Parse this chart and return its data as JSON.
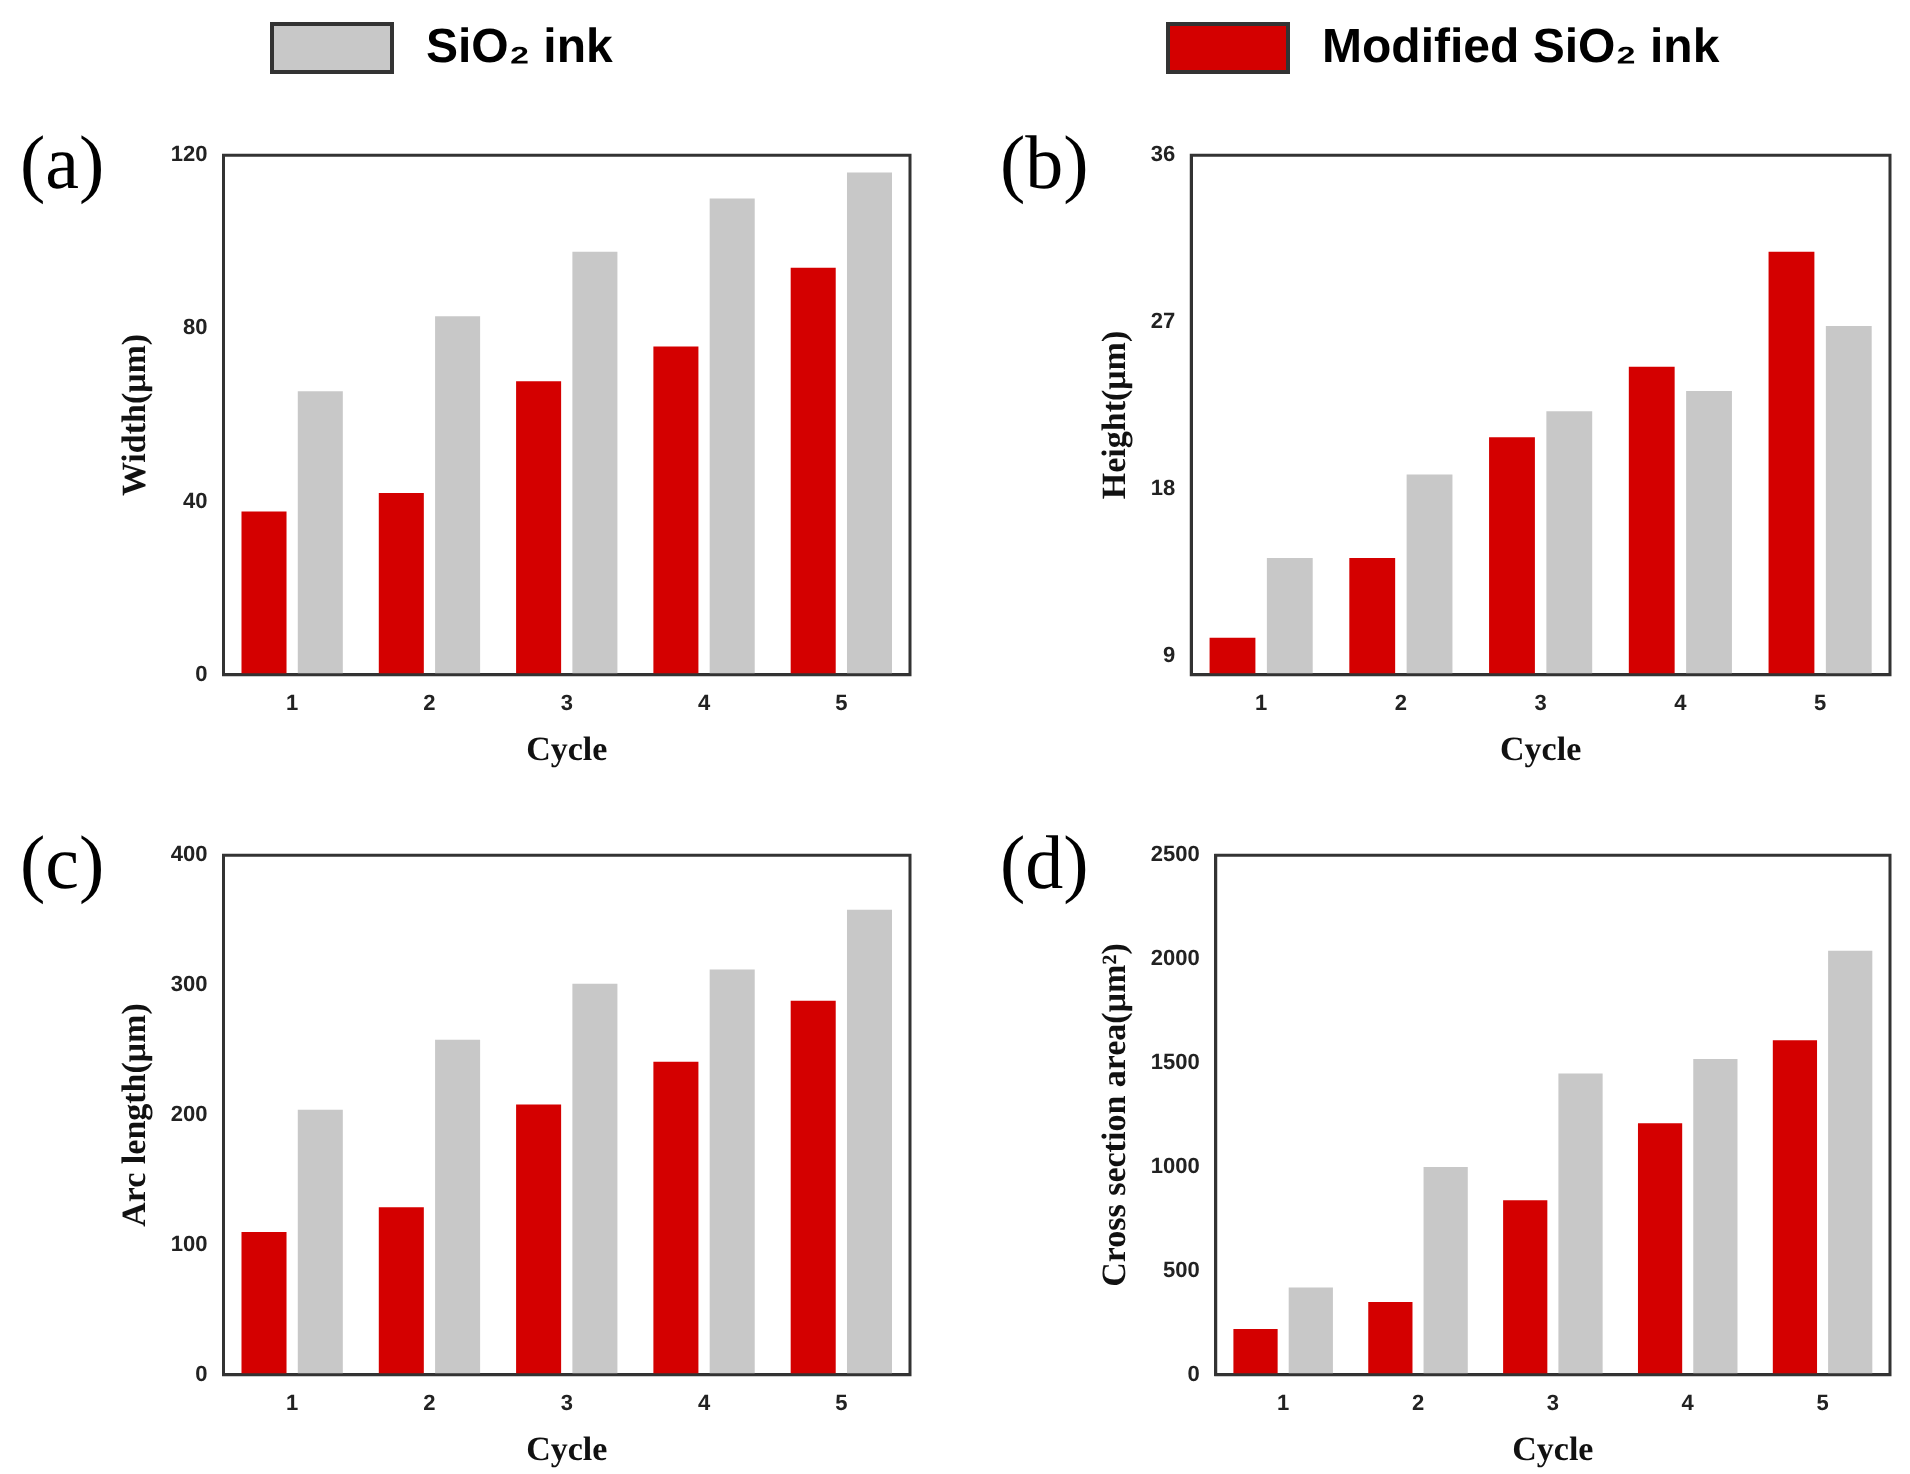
{
  "chart_data": [
    {
      "type": "bar",
      "title": "(a)",
      "xlabel": "Cycle",
      "ylabel": "Width(μm)",
      "categories": [
        "1",
        "2",
        "3",
        "4",
        "5"
      ],
      "legend": "top",
      "series": [
        {
          "name": "Modified SiO₂ ink",
          "color": "#d40000",
          "values": [
            37.7,
            42,
            67.8,
            75.8,
            94
          ]
        },
        {
          "name": "SiO₂ ink",
          "color": "#c8c8c8",
          "values": [
            65.5,
            82.8,
            97.7,
            110,
            116
          ]
        }
      ],
      "ylim": [
        0,
        120
      ],
      "yticks": [
        0,
        40,
        80,
        120
      ]
    },
    {
      "type": "bar",
      "title": "(b)",
      "xlabel": "Cycle",
      "ylabel": "Height(μm)",
      "categories": [
        "1",
        "2",
        "3",
        "4",
        "5"
      ],
      "series": [
        {
          "color": "#d40000",
          "values": [
            10,
            14.3,
            20.8,
            24.6,
            30.8
          ]
        },
        {
          "color": "#c8c8c8",
          "values": [
            14.3,
            18.8,
            22.2,
            23.3,
            26.8
          ]
        }
      ],
      "ylim": [
        8,
        36
      ],
      "yticks": [
        9,
        18,
        27,
        36
      ]
    },
    {
      "type": "bar",
      "title": "(c)",
      "xlabel": "Cycle",
      "ylabel": "Arc length(μm)",
      "categories": [
        "1",
        "2",
        "3",
        "4",
        "5"
      ],
      "series": [
        {
          "color": "#d40000",
          "values": [
            110,
            129,
            208,
            241,
            288
          ]
        },
        {
          "color": "#c8c8c8",
          "values": [
            204,
            258,
            301,
            312,
            358
          ]
        }
      ],
      "ylim": [
        0,
        400
      ],
      "yticks": [
        0,
        100,
        200,
        300,
        400
      ]
    },
    {
      "type": "bar",
      "title": "(d)",
      "xlabel": "Cycle",
      "ylabel": "Cross section area(μm²)",
      "categories": [
        "1",
        "2",
        "3",
        "4",
        "5"
      ],
      "series": [
        {
          "color": "#d40000",
          "values": [
            220,
            350,
            840,
            1210,
            1610
          ]
        },
        {
          "color": "#c8c8c8",
          "values": [
            420,
            1000,
            1450,
            1520,
            2040
          ]
        }
      ],
      "ylim": [
        0,
        2500
      ],
      "yticks": [
        0,
        500,
        1000,
        1500,
        2000,
        2500
      ]
    }
  ]
}
